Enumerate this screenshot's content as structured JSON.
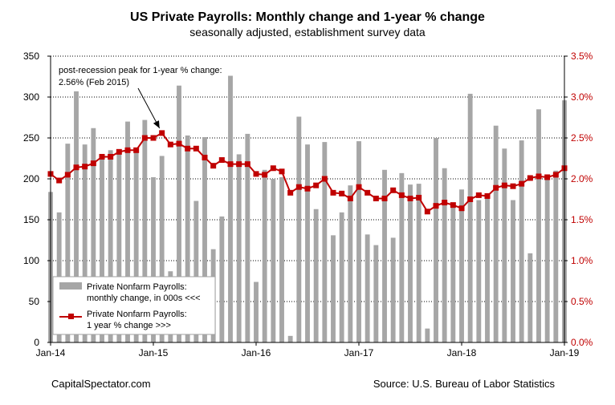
{
  "chart_data": {
    "type": "bar",
    "title": "US Private Payrolls: Monthly change and 1-year % change",
    "subtitle": "seasonally adjusted, establishment survey data",
    "left_ylim": [
      0,
      350
    ],
    "left_ticks": [
      "0",
      "50",
      "100",
      "150",
      "200",
      "250",
      "300",
      "350"
    ],
    "right_ylim": [
      0.0,
      3.5
    ],
    "right_ticks": [
      "0.0%",
      "0.5%",
      "1.0%",
      "1.5%",
      "2.0%",
      "2.5%",
      "3.0%",
      "3.5%"
    ],
    "x_ticks": [
      {
        "index": 0,
        "label": "Jan-14"
      },
      {
        "index": 12,
        "label": "Jan-15"
      },
      {
        "index": 24,
        "label": "Jan-16"
      },
      {
        "index": 36,
        "label": "Jan-17"
      },
      {
        "index": 48,
        "label": "Jan-18"
      },
      {
        "index": 60,
        "label": "Jan-19"
      }
    ],
    "series": [
      {
        "name": "Private Nonfarm Payrolls: monthly change, in 000s <<<",
        "type": "bar",
        "axis": "left",
        "color": "#a6a6a6",
        "values": [
          184,
          159,
          243,
          307,
          242,
          262,
          228,
          235,
          235,
          270,
          236,
          272,
          202,
          228,
          87,
          314,
          253,
          173,
          251,
          114,
          154,
          326,
          230,
          255,
          74,
          211,
          200,
          202,
          8,
          276,
          242,
          163,
          245,
          131,
          159,
          192,
          246,
          132,
          119,
          211,
          128,
          207,
          193,
          194,
          17,
          250,
          213,
          171,
          187,
          304,
          174,
          178,
          265,
          237,
          174,
          247,
          109,
          285,
          205,
          210,
          296
        ]
      },
      {
        "name": "Private Nonfarm Payrolls: 1 year % change >>>",
        "type": "line",
        "axis": "right",
        "color": "#c00000",
        "values": [
          2.06,
          1.98,
          2.05,
          2.14,
          2.15,
          2.19,
          2.27,
          2.27,
          2.33,
          2.35,
          2.35,
          2.5,
          2.5,
          2.56,
          2.42,
          2.43,
          2.37,
          2.37,
          2.26,
          2.16,
          2.23,
          2.18,
          2.18,
          2.18,
          2.06,
          2.05,
          2.13,
          2.09,
          1.83,
          1.9,
          1.88,
          1.92,
          2.0,
          1.83,
          1.82,
          1.76,
          1.9,
          1.83,
          1.76,
          1.76,
          1.86,
          1.8,
          1.76,
          1.77,
          1.6,
          1.67,
          1.71,
          1.68,
          1.64,
          1.75,
          1.8,
          1.79,
          1.89,
          1.92,
          1.91,
          1.94,
          2.01,
          2.03,
          2.02,
          2.05,
          2.13
        ]
      }
    ],
    "annotation": {
      "line1": "post-recession peak for 1-year % change:",
      "line2": "2.56% (Feb 2015)",
      "target_index": 13
    },
    "legend": {
      "placement": "bottom-left",
      "bar_line1": "Private Nonfarm Payrolls:",
      "bar_line2": "monthly change, in 000s <<<",
      "line_line1": "Private Nonfarm Payrolls:",
      "line_line2": "1 year % change >>>"
    }
  },
  "footer": {
    "left": "CapitalSpectator.com",
    "right": "Source: U.S. Bureau of Labor Statistics"
  },
  "colors": {
    "bar": "#a6a6a6",
    "line": "#c00000",
    "right_axis_text": "#c00000"
  }
}
